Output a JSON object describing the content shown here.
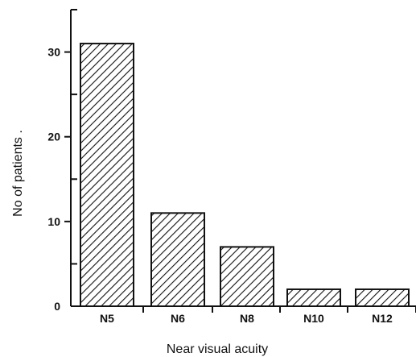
{
  "chart_data": {
    "type": "bar",
    "title": "",
    "xlabel": "Near visual acuity",
    "ylabel": "No of patients .",
    "categories": [
      "N5",
      "N6",
      "N8",
      "N10",
      "N12"
    ],
    "values": [
      31,
      11,
      7,
      2,
      2
    ],
    "ylim": [
      0,
      35
    ],
    "y_major_ticks": [
      0,
      10,
      20,
      30
    ],
    "y_minor_step": 5,
    "grid": false,
    "legend": "none",
    "bar_fill": "hatched",
    "colors": {
      "bar_stroke": "#111111",
      "hatch": "#111111",
      "axis": "#111111",
      "background": "#ffffff"
    }
  }
}
